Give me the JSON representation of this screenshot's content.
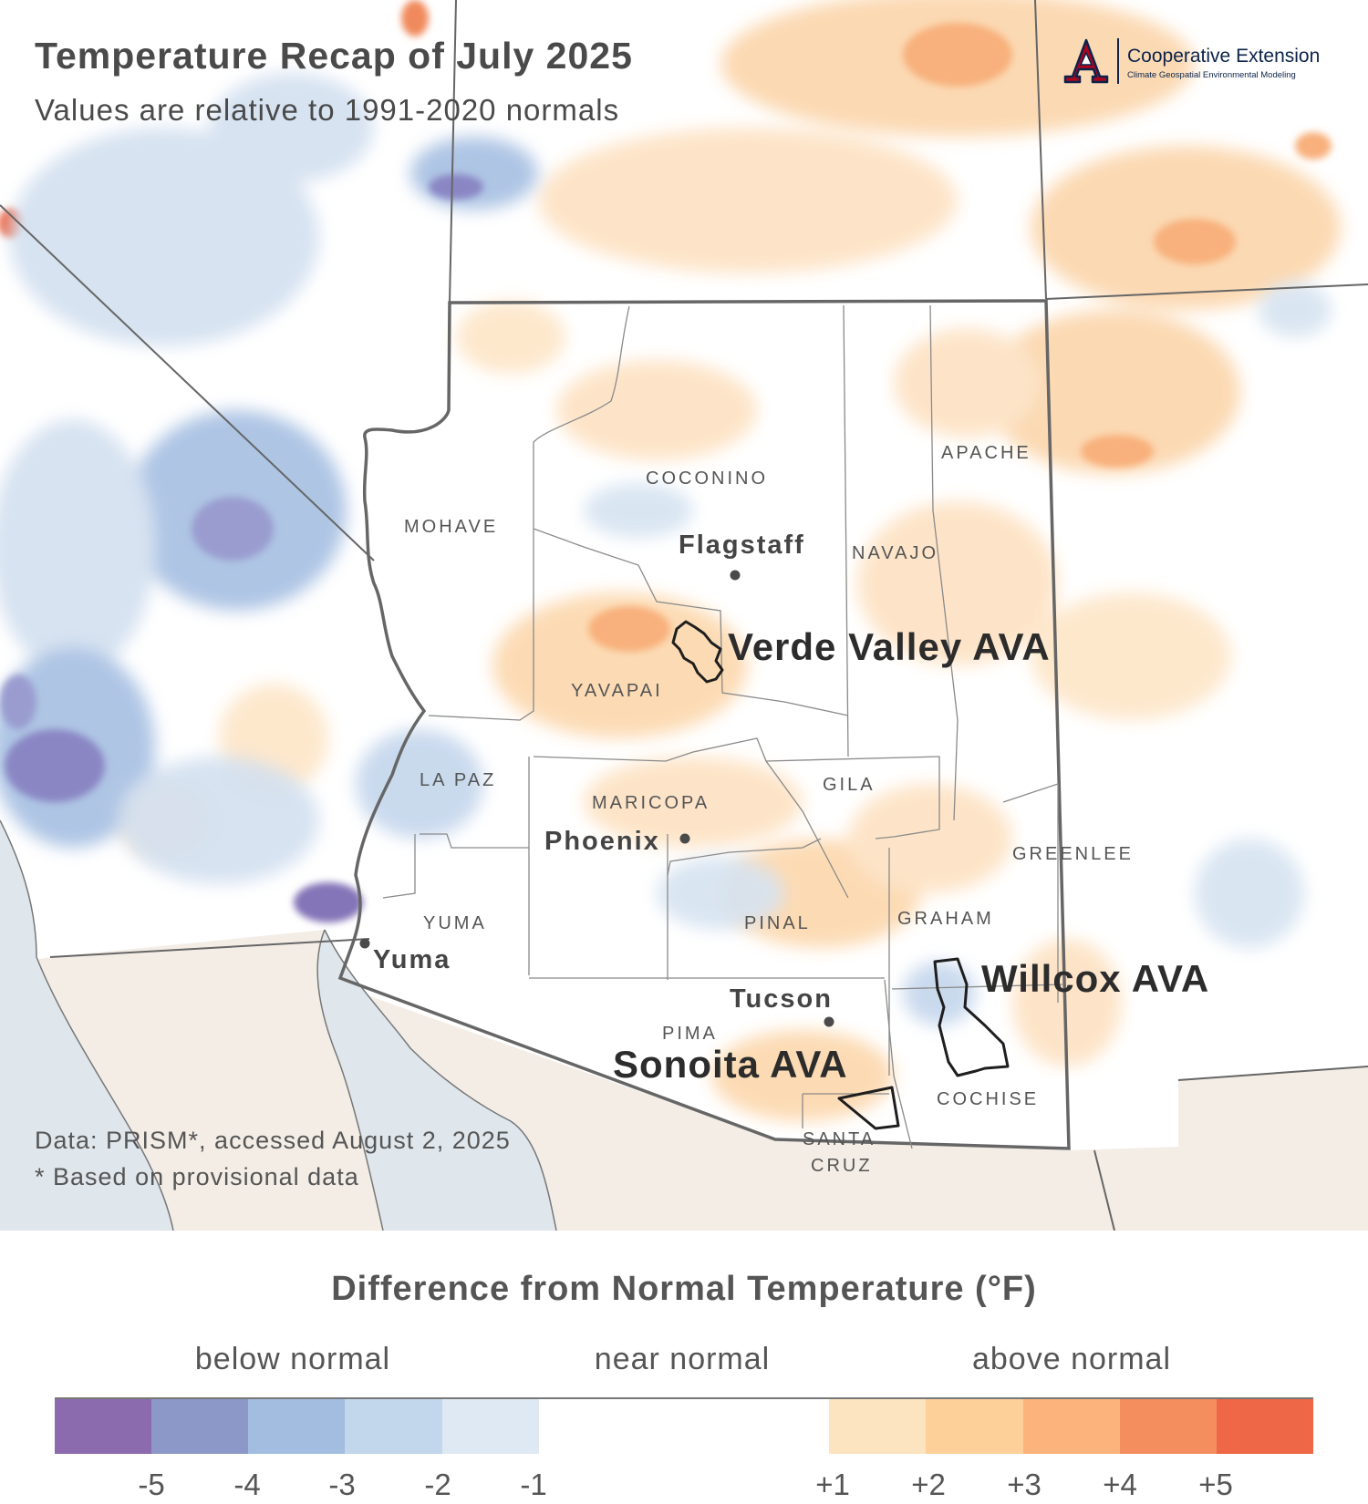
{
  "title": "Temperature Recap of July 2025",
  "subtitle": "Values are relative to 1991-2020 normals",
  "logo": {
    "name": "Cooperative Extension",
    "sub": "Climate Geospatial Environmental Modeling",
    "mark": "A"
  },
  "counties": {
    "mohave": "MOHAVE",
    "coconino": "COCONINO",
    "navajo": "NAVAJO",
    "apache": "APACHE",
    "yavapai": "YAVAPAI",
    "la_paz": "LA PAZ",
    "maricopa": "MARICOPA",
    "gila": "GILA",
    "greenlee": "GREENLEE",
    "yuma": "YUMA",
    "pinal": "PINAL",
    "graham": "GRAHAM",
    "pima": "PIMA",
    "cochise": "COCHISE",
    "santa_cruz_1": "SANTA",
    "santa_cruz_2": "CRUZ"
  },
  "cities": {
    "flagstaff": "Flagstaff",
    "phoenix": "Phoenix",
    "yuma": "Yuma",
    "tucson": "Tucson"
  },
  "avas": {
    "verde_valley": "Verde Valley AVA",
    "willcox": "Willcox AVA",
    "sonoita": "Sonoita AVA"
  },
  "credits": {
    "line1": "Data: PRISM*, accessed August 2, 2025",
    "line2": "* Based on provisional data"
  },
  "legend": {
    "title": "Difference from Normal Temperature (°F)",
    "categories": {
      "below": "below normal",
      "near": "near normal",
      "above": "above normal"
    },
    "bins": [
      {
        "color": "#8b6aad"
      },
      {
        "color": "#8c98c8"
      },
      {
        "color": "#a3bde0"
      },
      {
        "color": "#c2d6ec"
      },
      {
        "color": "#dfe9f4"
      },
      {
        "color": "#ffffff"
      },
      {
        "color": "#ffffff"
      },
      {
        "color": "#ffffff"
      },
      {
        "color": "#fde4c0"
      },
      {
        "color": "#fdd09a"
      },
      {
        "color": "#fcb47c"
      },
      {
        "color": "#f48e5e"
      },
      {
        "color": "#ee6746"
      }
    ],
    "ticks": {
      "m5": "-5",
      "m4": "-4",
      "m3": "-3",
      "m2": "-2",
      "m1": "-1",
      "p1": "+1",
      "p2": "+2",
      "p3": "+3",
      "p4": "+4",
      "p5": "+5"
    }
  },
  "colors": {
    "mexico_land": "#f3ede6",
    "ocean": "#dfe6ec",
    "state_border": "#666666",
    "county_border": "#8a8a8a",
    "ava_outline": "#1e1e1e",
    "cool": "#a6bfe2",
    "cold": "#8a86c4",
    "warm": "#fbd3a6",
    "hot": "#f6a071"
  }
}
